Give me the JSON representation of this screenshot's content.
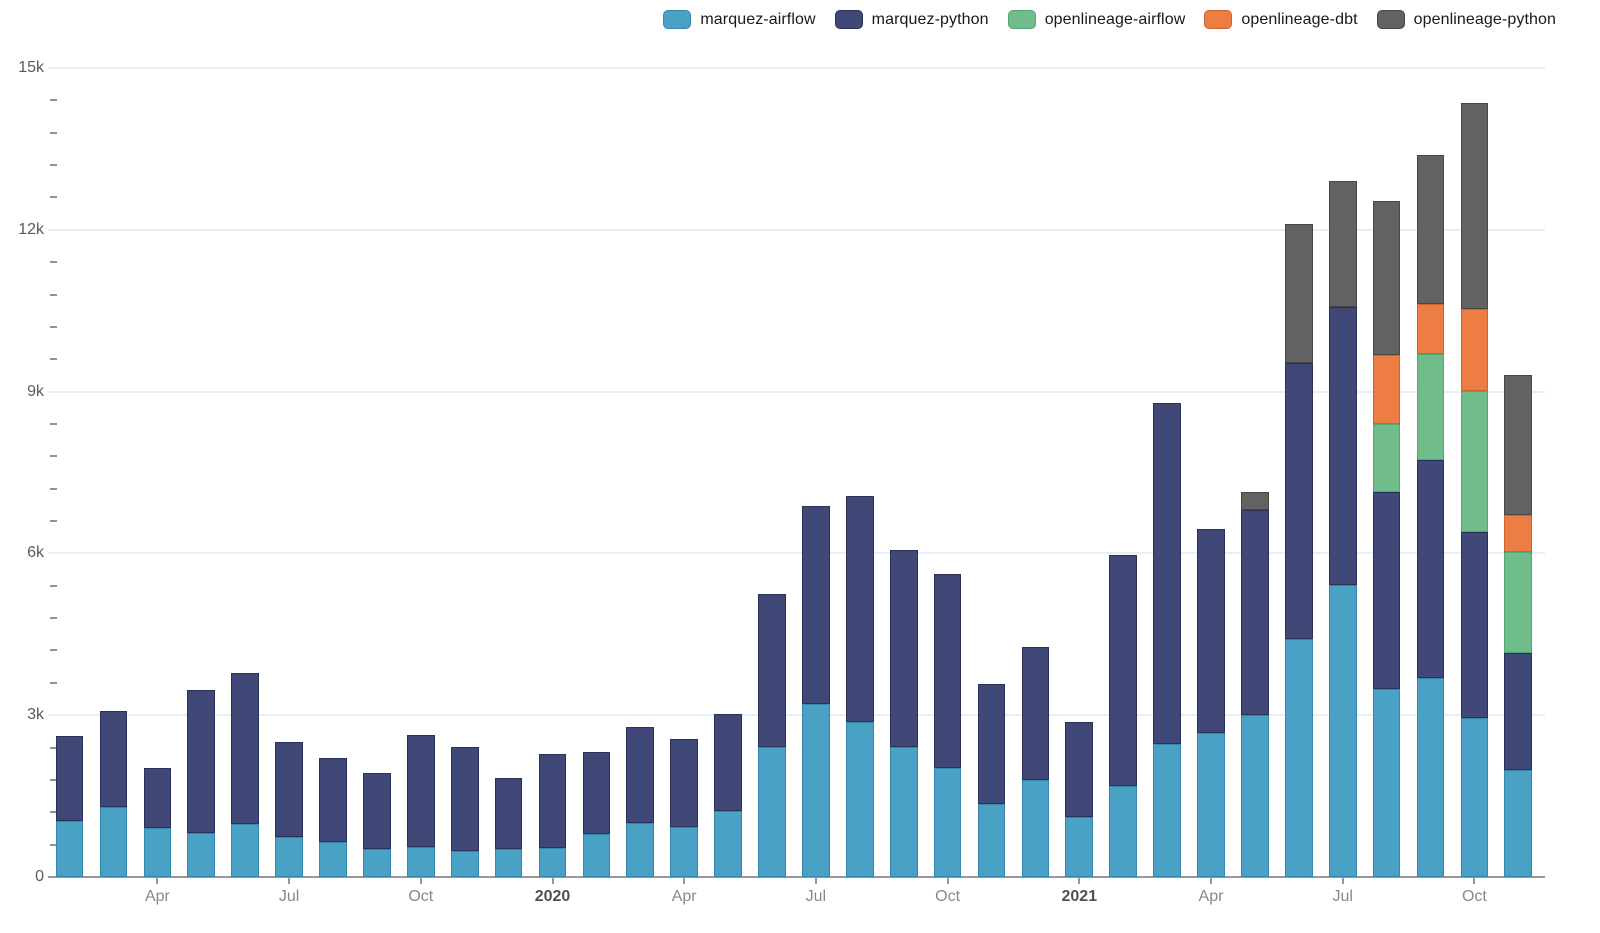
{
  "chart_data": {
    "type": "bar",
    "stacked": true,
    "title": "",
    "categories": [
      "Feb 2019",
      "Mar 2019",
      "Apr 2019",
      "May 2019",
      "Jun 2019",
      "Jul 2019",
      "Aug 2019",
      "Sep 2019",
      "Oct 2019",
      "Nov 2019",
      "Dec 2019",
      "Jan 2020",
      "Feb 2020",
      "Mar 2020",
      "Apr 2020",
      "May 2020",
      "Jun 2020",
      "Jul 2020",
      "Aug 2020",
      "Sep 2020",
      "Oct 2020",
      "Nov 2020",
      "Dec 2020",
      "Jan 2021",
      "Feb 2021",
      "Mar 2021",
      "Apr 2021",
      "May 2021",
      "Jun 2021",
      "Jul 2021",
      "Aug 2021",
      "Sep 2021",
      "Oct 2021",
      "Nov 2021"
    ],
    "series": [
      {
        "name": "marquez-airflow",
        "color": "#49a2c6",
        "border": "#3786ac",
        "values": [
          1030,
          1290,
          900,
          810,
          990,
          740,
          650,
          520,
          550,
          490,
          520,
          530,
          800,
          1000,
          920,
          1230,
          2410,
          3210,
          2880,
          2410,
          2020,
          1360,
          1800,
          1110,
          1680,
          2470,
          2670,
          3010,
          4420,
          5410,
          3490,
          3690,
          2950,
          1990
        ]
      },
      {
        "name": "marquez-python",
        "color": "#404878",
        "border": "#2a3158",
        "values": [
          1580,
          1790,
          1130,
          2650,
          2800,
          1760,
          1560,
          1410,
          2080,
          1920,
          1310,
          1750,
          1510,
          1790,
          1630,
          1790,
          2830,
          3660,
          4190,
          3650,
          3600,
          2220,
          2460,
          1760,
          4290,
          6310,
          3780,
          3800,
          5110,
          5150,
          3650,
          4040,
          3440,
          2170
        ]
      },
      {
        "name": "openlineage-airflow",
        "color": "#70bd8b",
        "border": "#4fa873",
        "values": [
          0,
          0,
          0,
          0,
          0,
          0,
          0,
          0,
          0,
          0,
          0,
          0,
          0,
          0,
          0,
          0,
          0,
          0,
          0,
          0,
          0,
          0,
          0,
          0,
          0,
          0,
          0,
          0,
          0,
          0,
          1250,
          1960,
          2620,
          1870
        ]
      },
      {
        "name": "openlineage-dbt",
        "color": "#ed7d43",
        "border": "#c96530",
        "values": [
          0,
          0,
          0,
          0,
          0,
          0,
          0,
          0,
          0,
          0,
          0,
          0,
          0,
          0,
          0,
          0,
          0,
          0,
          0,
          0,
          0,
          0,
          0,
          0,
          0,
          0,
          0,
          0,
          0,
          0,
          1290,
          940,
          1530,
          690
        ]
      },
      {
        "name": "openlineage-python",
        "color": "#626262",
        "border": "#474747",
        "values": [
          0,
          0,
          0,
          0,
          0,
          0,
          0,
          0,
          0,
          0,
          0,
          0,
          0,
          0,
          0,
          0,
          0,
          0,
          0,
          0,
          0,
          0,
          0,
          0,
          0,
          0,
          0,
          330,
          2580,
          2340,
          2850,
          2760,
          3810,
          2580
        ]
      }
    ],
    "y_axis": {
      "min": 0,
      "max": 15000,
      "major_step": 3000,
      "minor_step": 600,
      "tick_labels": [
        "0",
        "3k",
        "6k",
        "9k",
        "12k",
        "15k"
      ]
    },
    "x_ticks": [
      {
        "index": 2,
        "label": "Apr",
        "bold": false
      },
      {
        "index": 5,
        "label": "Jul",
        "bold": false
      },
      {
        "index": 8,
        "label": "Oct",
        "bold": false
      },
      {
        "index": 11,
        "label": "2020",
        "bold": true
      },
      {
        "index": 14,
        "label": "Apr",
        "bold": false
      },
      {
        "index": 17,
        "label": "Jul",
        "bold": false
      },
      {
        "index": 20,
        "label": "Oct",
        "bold": false
      },
      {
        "index": 23,
        "label": "2021",
        "bold": true
      },
      {
        "index": 26,
        "label": "Apr",
        "bold": false
      },
      {
        "index": 29,
        "label": "Jul",
        "bold": false
      },
      {
        "index": 32,
        "label": "Oct",
        "bold": false
      }
    ],
    "legend_position": "top",
    "grid": "horizontal-major",
    "colors": {
      "gridline": "#e7eaf2",
      "axis": "#96969b",
      "minor_tick": "#8f9399"
    }
  }
}
